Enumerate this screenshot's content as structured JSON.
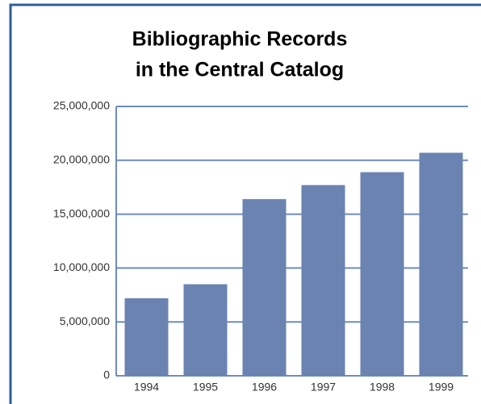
{
  "chart_data": {
    "type": "bar",
    "title": [
      "Bibliographic Records",
      "in the Central Catalog"
    ],
    "categories": [
      "1994",
      "1995",
      "1996",
      "1997",
      "1998",
      "1999"
    ],
    "values": [
      7200000,
      8500000,
      16400000,
      17700000,
      18900000,
      20700000
    ],
    "color": "#6a83b1",
    "ylim": [
      0,
      25000000
    ],
    "yticks": [
      0,
      {
        "value": 5000000,
        "label": "5,000,000"
      },
      {
        "value": 10000000,
        "label": "10,000,000"
      },
      {
        "value": 15000000,
        "label": "15,000,000"
      },
      {
        "value": 20000000,
        "label": "20,000,000"
      },
      {
        "value": 25000000,
        "label": "25,000,000"
      }
    ],
    "grid": true
  }
}
